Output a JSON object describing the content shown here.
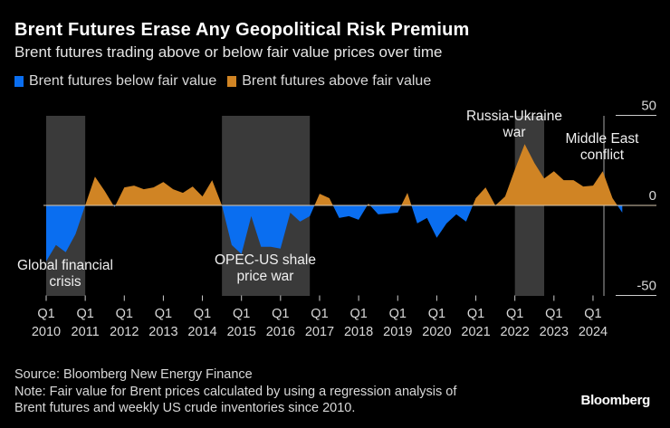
{
  "header": {
    "title": "Brent Futures Erase Any Geopolitical Risk Premium",
    "subtitle": "Brent futures trading above or below fair value prices over time"
  },
  "legend": [
    {
      "label": "Brent futures below fair value",
      "color": "#0a6ef0"
    },
    {
      "label": "Brent futures above fair value",
      "color": "#d08424"
    }
  ],
  "footer": {
    "source": "Source: Bloomberg New Energy Finance",
    "note_line1": "Note: Fair value for Brent prices calculated by using a regression analysis of",
    "note_line2": "Brent futures and weekly US crude inventories since 2010.",
    "brand": "Bloomberg"
  },
  "chart_data": {
    "type": "area",
    "title": "Brent Futures Erase Any Geopolitical Risk Premium",
    "subtitle": "Brent futures trading above or below fair value prices over time",
    "ylim": [
      -50,
      50
    ],
    "yticks": [
      50,
      0,
      -50
    ],
    "y_axis_position": "right",
    "grid": false,
    "legend_position": "top-left",
    "xticks": [
      {
        "q": "Q1",
        "year": "2010"
      },
      {
        "q": "Q1",
        "year": "2011"
      },
      {
        "q": "Q1",
        "year": "2012"
      },
      {
        "q": "Q1",
        "year": "2013"
      },
      {
        "q": "Q1",
        "year": "2014"
      },
      {
        "q": "Q1",
        "year": "2015"
      },
      {
        "q": "Q1",
        "year": "2016"
      },
      {
        "q": "Q1",
        "year": "2017"
      },
      {
        "q": "Q1",
        "year": "2018"
      },
      {
        "q": "Q1",
        "year": "2019"
      },
      {
        "q": "Q1",
        "year": "2020"
      },
      {
        "q": "Q1",
        "year": "2021"
      },
      {
        "q": "Q1",
        "year": "2022"
      },
      {
        "q": "Q1",
        "year": "2023"
      },
      {
        "q": "Q1",
        "year": "2024"
      }
    ],
    "colors": {
      "positive": "#d08424",
      "negative": "#0a6ef0",
      "shade": "#3a3a3a",
      "zero_line": "#d9c9b0"
    },
    "series": {
      "x": [
        "2010Q1",
        "2010Q2",
        "2010Q3",
        "2010Q4",
        "2011Q1",
        "2011Q2",
        "2011Q3",
        "2011Q4",
        "2012Q1",
        "2012Q2",
        "2012Q3",
        "2012Q4",
        "2013Q1",
        "2013Q2",
        "2013Q3",
        "2013Q4",
        "2014Q1",
        "2014Q2",
        "2014Q3",
        "2014Q4",
        "2015Q1",
        "2015Q2",
        "2015Q3",
        "2015Q4",
        "2016Q1",
        "2016Q2",
        "2016Q3",
        "2016Q4",
        "2017Q1",
        "2017Q2",
        "2017Q3",
        "2017Q4",
        "2018Q1",
        "2018Q2",
        "2018Q3",
        "2018Q4",
        "2019Q1",
        "2019Q2",
        "2019Q3",
        "2019Q4",
        "2020Q1",
        "2020Q2",
        "2020Q3",
        "2020Q4",
        "2021Q1",
        "2021Q2",
        "2021Q3",
        "2021Q4",
        "2022Q1",
        "2022Q2",
        "2022Q3",
        "2022Q4",
        "2023Q1",
        "2023Q2",
        "2023Q3",
        "2023Q4",
        "2024Q1",
        "2024Q2",
        "2024Q3",
        "2024Q4"
      ],
      "values": [
        -31,
        -22,
        -26,
        -16,
        0,
        16,
        8,
        -1,
        10,
        11,
        9,
        10,
        13,
        9,
        7,
        10.5,
        5,
        14,
        0,
        -22,
        -27,
        -6,
        -23,
        -23,
        -24,
        -4,
        -9,
        -6,
        6.5,
        4,
        -7,
        -6,
        -8,
        1,
        -5,
        -4.5,
        -4,
        7,
        -10,
        -7,
        -18,
        -10,
        -5,
        -9,
        4,
        10,
        0,
        5,
        20,
        34,
        23.5,
        15,
        19,
        14,
        14,
        10.5,
        11,
        19,
        4,
        -4
      ]
    },
    "annotations": [
      {
        "line1": "Global financial",
        "line2": "crisis",
        "start": 2010.0,
        "end": 2011.0,
        "kind": "band"
      },
      {
        "line1": "OPEC-US shale",
        "line2": "price war",
        "start": 2014.5,
        "end": 2016.75,
        "kind": "band"
      },
      {
        "line1": "Russia-Ukraine",
        "line2": "war",
        "start": 2022.0,
        "end": 2022.75,
        "kind": "band"
      },
      {
        "line1": "Middle East",
        "line2": "conflict",
        "start": 2024.28,
        "end": 2024.28,
        "kind": "line"
      }
    ]
  }
}
